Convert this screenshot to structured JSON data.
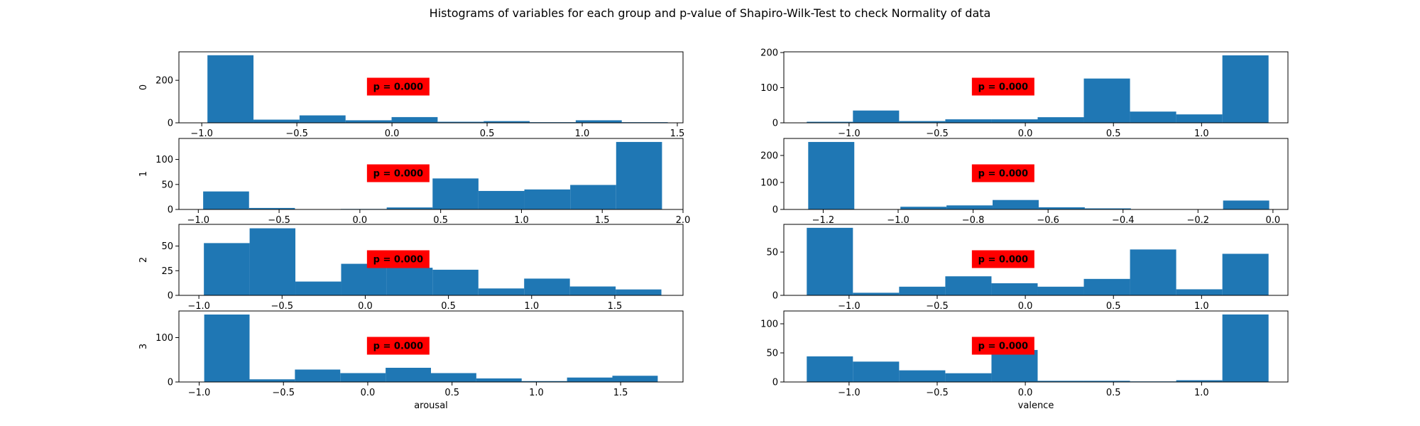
{
  "figure": {
    "title": "Histograms of variables for each group and p-value of Shapiro-Wilk-Test to check Normality of data"
  },
  "colors": {
    "bar": "#1f77b4",
    "annotation_box": "#ff0000"
  },
  "chart_data": [
    {
      "type": "bar",
      "variable": "arousal",
      "group": "0",
      "ylabel": "0",
      "xlabel": "",
      "xlim": [
        -1.12,
        1.53
      ],
      "ylim": [
        0,
        334
      ],
      "xticks": [
        -1.0,
        -0.5,
        0.0,
        0.5,
        1.0,
        1.5
      ],
      "yticks": [
        0,
        200
      ],
      "bin_edges": [
        -0.97,
        -0.728,
        -0.486,
        -0.244,
        -0.002,
        0.24,
        0.482,
        0.724,
        0.966,
        1.208,
        1.45
      ],
      "counts": [
        318,
        15,
        35,
        12,
        27,
        5,
        8,
        3,
        12,
        3
      ],
      "annotation": "p = 0.000"
    },
    {
      "type": "bar",
      "variable": "valence",
      "group": "0",
      "ylabel": "",
      "xlabel": "",
      "xlim": [
        -1.37,
        1.49
      ],
      "ylim": [
        0,
        202
      ],
      "xticks": [
        -1.0,
        -0.5,
        0.0,
        0.5,
        1.0
      ],
      "yticks": [
        0,
        100,
        200
      ],
      "bin_edges": [
        -1.24,
        -0.978,
        -0.716,
        -0.454,
        -0.192,
        0.07,
        0.332,
        0.594,
        0.856,
        1.118,
        1.38
      ],
      "counts": [
        3,
        35,
        5,
        10,
        10,
        16,
        126,
        32,
        24,
        192
      ],
      "annotation": "p = 0.000"
    },
    {
      "type": "bar",
      "variable": "arousal",
      "group": "1",
      "ylabel": "1",
      "xlabel": "",
      "xlim": [
        -1.12,
        2.0
      ],
      "ylim": [
        0,
        142
      ],
      "xticks": [
        -1.0,
        -0.5,
        0.0,
        0.5,
        1.0,
        1.5,
        2.0
      ],
      "yticks": [
        0,
        50,
        100
      ],
      "bin_edges": [
        -0.97,
        -0.686,
        -0.402,
        -0.118,
        0.166,
        0.45,
        0.734,
        1.018,
        1.302,
        1.586,
        1.87
      ],
      "counts": [
        36,
        3,
        0,
        1,
        4,
        62,
        37,
        40,
        49,
        135
      ],
      "annotation": "p = 0.000"
    },
    {
      "type": "bar",
      "variable": "valence",
      "group": "1",
      "ylabel": "",
      "xlabel": "",
      "xlim": [
        -1.305,
        0.04
      ],
      "ylim": [
        0,
        263
      ],
      "xticks": [
        -1.2,
        -1.0,
        -0.8,
        -0.6,
        -0.4,
        -0.2,
        0.0
      ],
      "yticks": [
        0,
        100,
        200
      ],
      "bin_edges": [
        -1.24,
        -1.117,
        -0.994,
        -0.871,
        -0.748,
        -0.625,
        -0.502,
        -0.379,
        -0.256,
        -0.133,
        -0.01
      ],
      "counts": [
        250,
        0,
        10,
        15,
        35,
        8,
        4,
        0,
        0,
        33
      ],
      "annotation": "p = 0.000"
    },
    {
      "type": "bar",
      "variable": "arousal",
      "group": "2",
      "ylabel": "2",
      "xlabel": "",
      "xlim": [
        -1.12,
        1.91
      ],
      "ylim": [
        0,
        72
      ],
      "xticks": [
        -1.0,
        -0.5,
        0.0,
        0.5,
        1.0,
        1.5
      ],
      "yticks": [
        0,
        25,
        50
      ],
      "bin_edges": [
        -0.97,
        -0.695,
        -0.42,
        -0.145,
        0.13,
        0.405,
        0.68,
        0.955,
        1.23,
        1.505,
        1.78
      ],
      "counts": [
        53,
        68,
        14,
        32,
        28,
        26,
        7,
        17,
        9,
        6
      ],
      "annotation": "p = 0.000"
    },
    {
      "type": "bar",
      "variable": "valence",
      "group": "2",
      "ylabel": "",
      "xlabel": "",
      "xlim": [
        -1.37,
        1.49
      ],
      "ylim": [
        0,
        82
      ],
      "xticks": [
        -1.0,
        -0.5,
        0.0,
        0.5,
        1.0
      ],
      "yticks": [
        0,
        50
      ],
      "bin_edges": [
        -1.24,
        -0.978,
        -0.716,
        -0.454,
        -0.192,
        0.07,
        0.332,
        0.594,
        0.856,
        1.118,
        1.38
      ],
      "counts": [
        78,
        3,
        10,
        22,
        14,
        10,
        19,
        53,
        7,
        48
      ],
      "annotation": "p = 0.000"
    },
    {
      "type": "bar",
      "variable": "arousal",
      "group": "3",
      "ylabel": "3",
      "xlabel": "arousal",
      "xlim": [
        -1.12,
        1.87
      ],
      "ylim": [
        0,
        160
      ],
      "xticks": [
        -1.0,
        -0.5,
        0.0,
        0.5,
        1.0,
        1.5
      ],
      "yticks": [
        0,
        100
      ],
      "bin_edges": [
        -0.97,
        -0.701,
        -0.432,
        -0.163,
        0.106,
        0.375,
        0.644,
        0.913,
        1.182,
        1.451,
        1.72
      ],
      "counts": [
        152,
        6,
        28,
        20,
        32,
        20,
        8,
        2,
        10,
        14
      ],
      "annotation": "p = 0.000"
    },
    {
      "type": "bar",
      "variable": "valence",
      "group": "3",
      "ylabel": "",
      "xlabel": "valence",
      "xlim": [
        -1.37,
        1.49
      ],
      "ylim": [
        0,
        122
      ],
      "xticks": [
        -1.0,
        -0.5,
        0.0,
        0.5,
        1.0
      ],
      "yticks": [
        0,
        50,
        100
      ],
      "bin_edges": [
        -1.24,
        -0.978,
        -0.716,
        -0.454,
        -0.192,
        0.07,
        0.332,
        0.594,
        0.856,
        1.118,
        1.38
      ],
      "counts": [
        44,
        35,
        20,
        15,
        55,
        2,
        2,
        1,
        3,
        116
      ],
      "annotation": "p = 0.000"
    }
  ]
}
